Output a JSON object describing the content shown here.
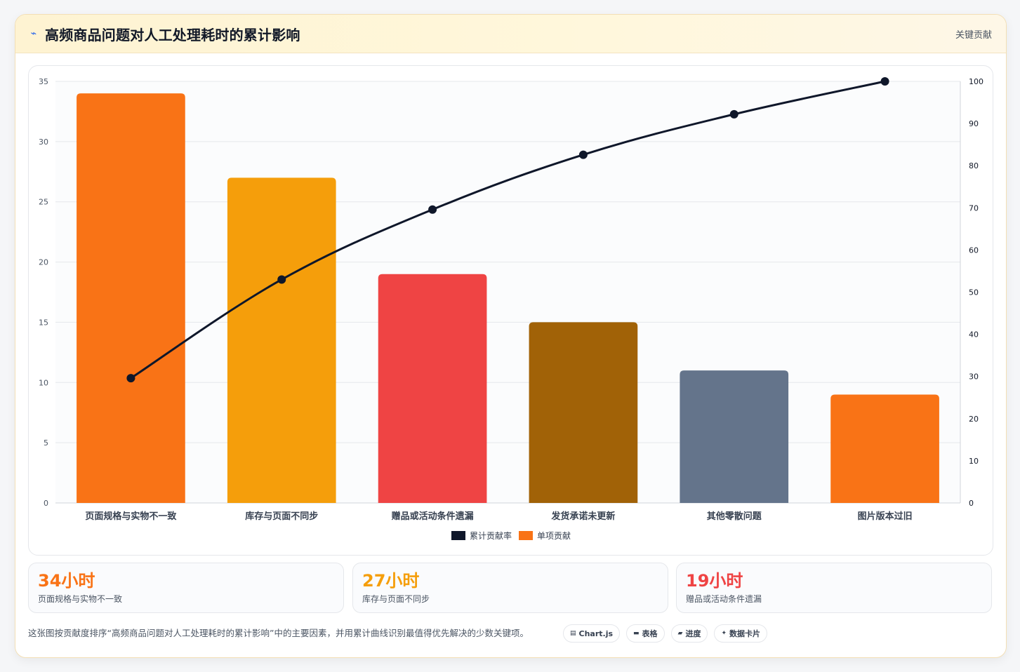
{
  "header": {
    "title_icon": "lightning-icon",
    "title": "高频商品问题对人工处理耗时的累计影响",
    "tag": "关键贡献"
  },
  "chart_data": {
    "type": "bar",
    "categories": [
      "页面规格与实物不一致",
      "库存与页面不同步",
      "赠品或活动条件遗漏",
      "发货承诺未更新",
      "其他零散问题",
      "图片版本过旧"
    ],
    "series": [
      {
        "name": "单项贡献",
        "type": "bar",
        "values": [
          34,
          27,
          19,
          15,
          11,
          9
        ],
        "colors": [
          "#f97316",
          "#f59e0b",
          "#ef4444",
          "#a16207",
          "#64748b",
          "#f97316"
        ]
      },
      {
        "name": "累计贡献率",
        "type": "line",
        "axis": "right",
        "values": [
          29.6,
          53.0,
          69.6,
          82.6,
          92.2,
          100
        ],
        "color": "#0f172a"
      }
    ],
    "ylim": [
      0,
      35
    ],
    "yticks": [
      0,
      5,
      10,
      15,
      20,
      25,
      30,
      35
    ],
    "y2lim": [
      0,
      100
    ],
    "y2ticks": [
      0,
      10,
      20,
      30,
      40,
      50,
      60,
      70,
      80,
      90,
      100
    ],
    "grid": true,
    "legend_position": "bottom",
    "legend": [
      {
        "label": "累计贡献率",
        "color": "#0f172a"
      },
      {
        "label": "单项贡献",
        "color": "#f97316"
      }
    ]
  },
  "stats": [
    {
      "value": "34小时",
      "label": "页面规格与实物不一致",
      "color": "#f97316"
    },
    {
      "value": "27小时",
      "label": "库存与页面不同步",
      "color": "#f59e0b"
    },
    {
      "value": "19小时",
      "label": "赠品或活动条件遗漏",
      "color": "#ef4444"
    }
  ],
  "footer": {
    "note": "这张图按贡献度排序“高频商品问题对人工处理耗时的累计影响”中的主要因素，并用累计曲线识别最值得优先解决的少数关键项。"
  },
  "chips": [
    {
      "icon": "chart-icon",
      "glyph": "▤",
      "label": "Chart.js"
    },
    {
      "icon": "table-icon",
      "glyph": "▬",
      "label": "表格"
    },
    {
      "icon": "progress-icon",
      "glyph": "▰",
      "label": "进度"
    },
    {
      "icon": "sparkle-icon",
      "glyph": "✦",
      "label": "数据卡片"
    }
  ]
}
